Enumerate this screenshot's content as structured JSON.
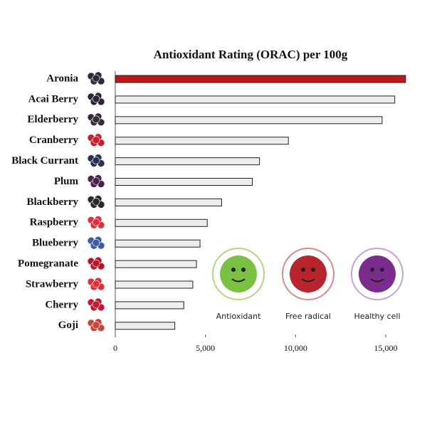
{
  "chart_data": {
    "type": "hbar",
    "title": "Antioxidant Rating (ORAC) per 100g",
    "categories": [
      "Aronia",
      "Acai Berry",
      "Elderberry",
      "Cranberry",
      "Black Currant",
      "Plum",
      "Blackberry",
      "Raspberry",
      "Blueberry",
      "Pomegranate",
      "Strawberry",
      "Cherry",
      "Goji"
    ],
    "values": [
      16100,
      15500,
      14800,
      9600,
      8000,
      7600,
      5900,
      5100,
      4700,
      4500,
      4300,
      3800,
      3300
    ],
    "colors": [
      "#c0161c",
      "#ededed",
      "#ededed",
      "#ededed",
      "#ededed",
      "#ededed",
      "#ededed",
      "#ededed",
      "#ededed",
      "#ededed",
      "#ededed",
      "#ededed",
      "#ededed"
    ],
    "xlim": [
      0,
      16500
    ],
    "xticks": [
      0,
      {
        "value": 5000,
        "label": "5,000"
      },
      {
        "value": 10000,
        "label": "10,000"
      },
      {
        "value": 15000,
        "label": "15,000"
      }
    ],
    "annotations": [
      "Antioxidant",
      "Free radical",
      "Healthy cell"
    ]
  }
}
